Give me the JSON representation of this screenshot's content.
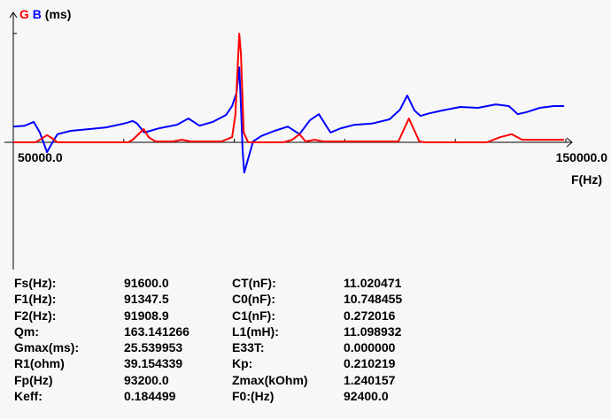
{
  "chart_data": {
    "type": "line",
    "ylabel_parts": [
      {
        "text": "G",
        "color": "#ff0000"
      },
      {
        "text": "B",
        "color": "#0000ff"
      },
      {
        "text": "(ms)",
        "color": "#000000"
      }
    ],
    "xlabel": "F(Hz)",
    "x_tick_labels": [
      "50000.0",
      "150000.0"
    ],
    "xlim": [
      50000,
      150000
    ],
    "ylim": [
      -30,
      30.5
    ],
    "grid": false,
    "series": [
      {
        "name": "G",
        "color": "#ff0000",
        "points": [
          [
            50000,
            0
          ],
          [
            54000,
            0
          ],
          [
            55300,
            1.0
          ],
          [
            56100,
            1.7
          ],
          [
            57200,
            0.8
          ],
          [
            58000,
            0
          ],
          [
            70800,
            0
          ],
          [
            71600,
            0.6
          ],
          [
            73600,
            3.1
          ],
          [
            74500,
            1.2
          ],
          [
            75700,
            0.2
          ],
          [
            78900,
            0.2
          ],
          [
            80500,
            0.6
          ],
          [
            82100,
            0.2
          ],
          [
            87700,
            0.2
          ],
          [
            89600,
            1.2
          ],
          [
            90200,
            6.4
          ],
          [
            90900,
            25.5
          ],
          [
            91200,
            20.7
          ],
          [
            91700,
            2.3
          ],
          [
            92500,
            0
          ],
          [
            98900,
            0
          ],
          [
            100500,
            0.6
          ],
          [
            101800,
            1.9
          ],
          [
            102900,
            0.2
          ],
          [
            104500,
            0.6
          ],
          [
            106100,
            0.2
          ],
          [
            119700,
            0.2
          ],
          [
            121600,
            5.6
          ],
          [
            123500,
            0.2
          ],
          [
            124500,
            0
          ],
          [
            133300,
            0
          ],
          [
            135700,
            0
          ],
          [
            138100,
            1.2
          ],
          [
            140200,
            1.9
          ],
          [
            142100,
            0.6
          ],
          [
            143700,
            0.6
          ],
          [
            149700,
            0.6
          ]
        ]
      },
      {
        "name": "B",
        "color": "#0000ff",
        "points": [
          [
            50000,
            3.7
          ],
          [
            52100,
            3.9
          ],
          [
            53700,
            4.8
          ],
          [
            54800,
            2.3
          ],
          [
            56100,
            -2.3
          ],
          [
            57200,
            0.2
          ],
          [
            58000,
            1.9
          ],
          [
            60400,
            2.7
          ],
          [
            63600,
            3.1
          ],
          [
            66800,
            3.5
          ],
          [
            70000,
            4.4
          ],
          [
            71600,
            5.0
          ],
          [
            72400,
            4.4
          ],
          [
            73700,
            2.3
          ],
          [
            74800,
            2.7
          ],
          [
            76400,
            3.3
          ],
          [
            79600,
            4.1
          ],
          [
            81700,
            5.6
          ],
          [
            83700,
            3.9
          ],
          [
            86100,
            4.8
          ],
          [
            88500,
            6.4
          ],
          [
            89600,
            8.5
          ],
          [
            90400,
            11.6
          ],
          [
            90900,
            17.6
          ],
          [
            91200,
            8.5
          ],
          [
            91500,
            -1.9
          ],
          [
            91800,
            -7.1
          ],
          [
            92500,
            -3.9
          ],
          [
            93400,
            0.2
          ],
          [
            94900,
            1.5
          ],
          [
            97300,
            2.7
          ],
          [
            99700,
            3.7
          ],
          [
            101800,
            1.9
          ],
          [
            103700,
            5.2
          ],
          [
            105300,
            6.6
          ],
          [
            107400,
            2.3
          ],
          [
            109300,
            3.3
          ],
          [
            111700,
            4.1
          ],
          [
            114900,
            4.4
          ],
          [
            118100,
            5.4
          ],
          [
            120000,
            7.7
          ],
          [
            121300,
            11.0
          ],
          [
            122600,
            7.5
          ],
          [
            123700,
            6.2
          ],
          [
            125300,
            6.8
          ],
          [
            127700,
            7.5
          ],
          [
            130900,
            8.3
          ],
          [
            134100,
            8.1
          ],
          [
            137300,
            8.9
          ],
          [
            139700,
            8.5
          ],
          [
            141300,
            6.6
          ],
          [
            142900,
            7.1
          ],
          [
            145300,
            8.1
          ],
          [
            147800,
            8.5
          ],
          [
            149700,
            8.5
          ]
        ]
      }
    ]
  },
  "results": [
    [
      "Fs(Hz):",
      "91600.0",
      "CT(nF):",
      "11.020471"
    ],
    [
      "F1(Hz):",
      "91347.5",
      "C0(nF):",
      "10.748455"
    ],
    [
      "F2(Hz):",
      "91908.9",
      "C1(nF):",
      "0.272016"
    ],
    [
      "Qm:",
      "163.141266",
      "L1(mH):",
      "11.098932"
    ],
    [
      "Gmax(ms):",
      "25.539953",
      "E33T:",
      "0.000000"
    ],
    [
      "R1(ohm)",
      "39.154339",
      "Kp:",
      "0.210219"
    ],
    [
      "Fp(Hz)",
      "93200.0",
      "Zmax(kOhm)",
      "1.240157"
    ],
    [
      "Keff:",
      "0.184499",
      "F0:(Hz)",
      "92400.0"
    ]
  ]
}
